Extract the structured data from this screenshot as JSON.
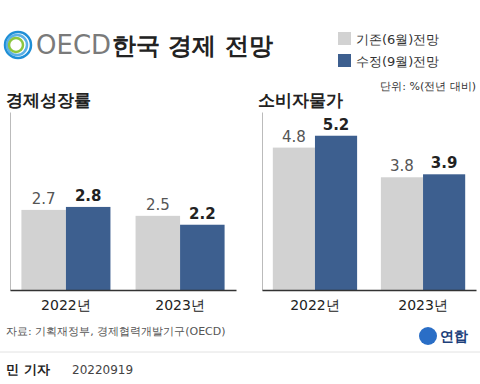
{
  "header": {
    "org": "OECD",
    "title": "한국 경제 전망",
    "unit": "단위: %(전년 대비)"
  },
  "chart_data": [
    {
      "type": "bar",
      "title": "경제성장률",
      "categories": [
        "2022년",
        "2023년"
      ],
      "series": [
        {
          "name": "기존(6월)전망",
          "color": "#d2d2d2",
          "values": [
            2.7,
            2.5
          ]
        },
        {
          "name": "수정(9월)전망",
          "color": "#3d5f8f",
          "values": [
            2.8,
            2.2
          ]
        }
      ],
      "ylim": [
        0,
        6
      ],
      "data_labels": true,
      "tick_labels": "x",
      "legend": "top-right"
    },
    {
      "type": "bar",
      "title": "소비자물가",
      "categories": [
        "2022년",
        "2023년"
      ],
      "series": [
        {
          "color": "#d2d2d2",
          "values": [
            4.8,
            3.8
          ]
        },
        {
          "color": "#3d5f8f",
          "values": [
            5.2,
            3.9
          ]
        }
      ],
      "ylim": [
        0,
        6
      ],
      "data_labels": true,
      "tick_labels": "x"
    }
  ],
  "footer": {
    "source": "자료: 기획재정부, 경제협력개발기구(OECD)",
    "byline": "민 기자",
    "date": "20220919",
    "logo": "연합"
  }
}
